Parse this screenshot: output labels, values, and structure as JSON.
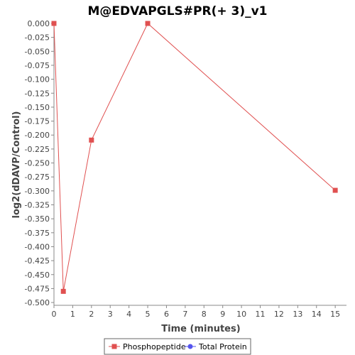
{
  "chart_data": {
    "type": "line",
    "title": "M@EDVAPGLS#PR(+ 3)_v1",
    "xlabel": "Time (minutes)",
    "ylabel": "log2(dDAVP/Control)",
    "xlim": [
      0,
      15.6
    ],
    "ylim": [
      -0.505,
      0.0
    ],
    "xticks": [
      0,
      1,
      2,
      3,
      4,
      5,
      6,
      7,
      8,
      9,
      10,
      11,
      12,
      13,
      14,
      15
    ],
    "yticks": [
      "0.000",
      "-0.025",
      "-0.050",
      "-0.075",
      "-0.100",
      "-0.125",
      "-0.150",
      "-0.175",
      "-0.200",
      "-0.225",
      "-0.250",
      "-0.275",
      "-0.300",
      "-0.325",
      "-0.350",
      "-0.375",
      "-0.400",
      "-0.425",
      "-0.450",
      "-0.475",
      "-0.500"
    ],
    "grid": false,
    "legend_position": "bottom",
    "series": [
      {
        "name": "Phosphopeptide",
        "color": "#e05050",
        "marker": "square",
        "x": [
          0,
          0.5,
          2,
          5,
          15
        ],
        "y": [
          0.0,
          -0.48,
          -0.209,
          0.0,
          -0.299
        ]
      },
      {
        "name": "Total Protein",
        "color": "#5555ee",
        "marker": "circle",
        "x": [],
        "y": []
      }
    ]
  }
}
